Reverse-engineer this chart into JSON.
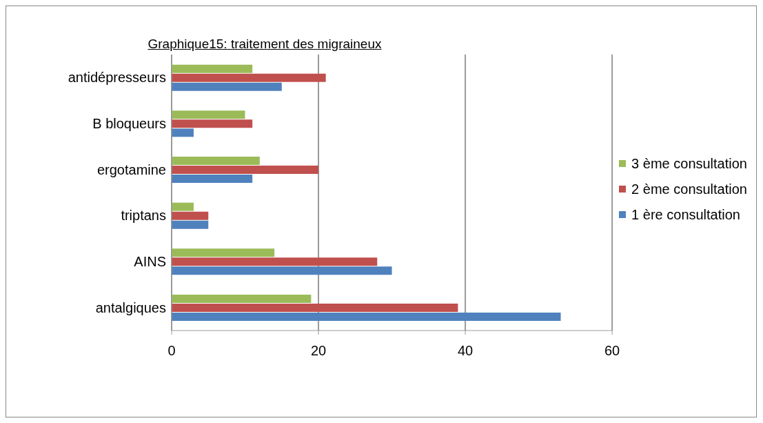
{
  "chart_data": {
    "type": "bar",
    "orientation": "horizontal",
    "title": "Graphique15: traitement des migraineux",
    "categories": [
      "antidépresseurs",
      "B bloqueurs",
      "ergotamine",
      "triptans",
      "AINS",
      "antalgiques"
    ],
    "series": [
      {
        "name": "1 ère consultation",
        "color": "#4f81bd",
        "values": [
          15,
          3,
          11,
          5,
          30,
          53
        ]
      },
      {
        "name": "2 ème consultation",
        "color": "#c0504d",
        "values": [
          21,
          11,
          20,
          5,
          28,
          39
        ]
      },
      {
        "name": "3 ème consultation",
        "color": "#9bbb59",
        "values": [
          11,
          10,
          12,
          3,
          14,
          19
        ]
      }
    ],
    "xlim": [
      0,
      60
    ],
    "xticks": [
      0,
      20,
      40,
      60
    ],
    "grid": "x",
    "legend": "right"
  }
}
